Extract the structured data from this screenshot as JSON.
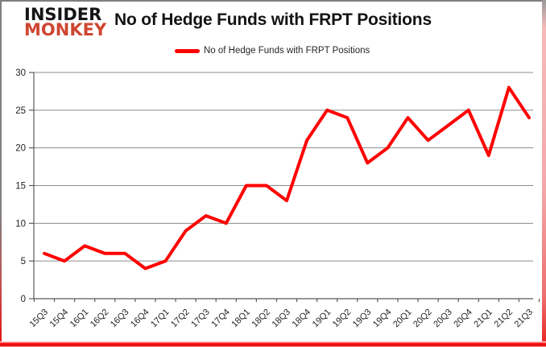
{
  "logo": {
    "line1": "INSIDER",
    "line2": "MONKEY",
    "accent_color": "#cf4631"
  },
  "header": {
    "title": "No of Hedge Funds with FRPT Positions"
  },
  "legend": {
    "label": "No of Hedge Funds with FRPT Positions",
    "marker_color": "#ff0000"
  },
  "chart_data": {
    "type": "line",
    "title": "No of Hedge Funds with FRPT Positions",
    "legend_entries": [
      "No of Hedge Funds with FRPT Positions"
    ],
    "legend_position": "top-center",
    "xlabel": "",
    "ylabel": "",
    "categories": [
      "15Q3",
      "15Q4",
      "16Q1",
      "16Q2",
      "16Q3",
      "16Q4",
      "17Q1",
      "17Q2",
      "17Q3",
      "17Q4",
      "18Q1",
      "18Q2",
      "18Q3",
      "18Q4",
      "19Q1",
      "19Q2",
      "19Q3",
      "19Q4",
      "20Q1",
      "20Q2",
      "20Q3",
      "20Q4",
      "21Q1",
      "21Q2",
      "21Q3"
    ],
    "series": [
      {
        "name": "No of Hedge Funds with FRPT Positions",
        "color": "#ff0000",
        "values": [
          6,
          5,
          7,
          6,
          6,
          4,
          5,
          9,
          11,
          10,
          15,
          15,
          13,
          21,
          25,
          24,
          18,
          20,
          24,
          21,
          23,
          25,
          19,
          28,
          24
        ]
      }
    ],
    "ylim": [
      0,
      30
    ],
    "yticks": [
      0,
      5,
      10,
      15,
      20,
      25,
      30
    ],
    "grid": "horizontal",
    "colors": {
      "grid": "#8c8c8c",
      "axis": "#595959",
      "tick_label": "#1f1f1f"
    }
  }
}
